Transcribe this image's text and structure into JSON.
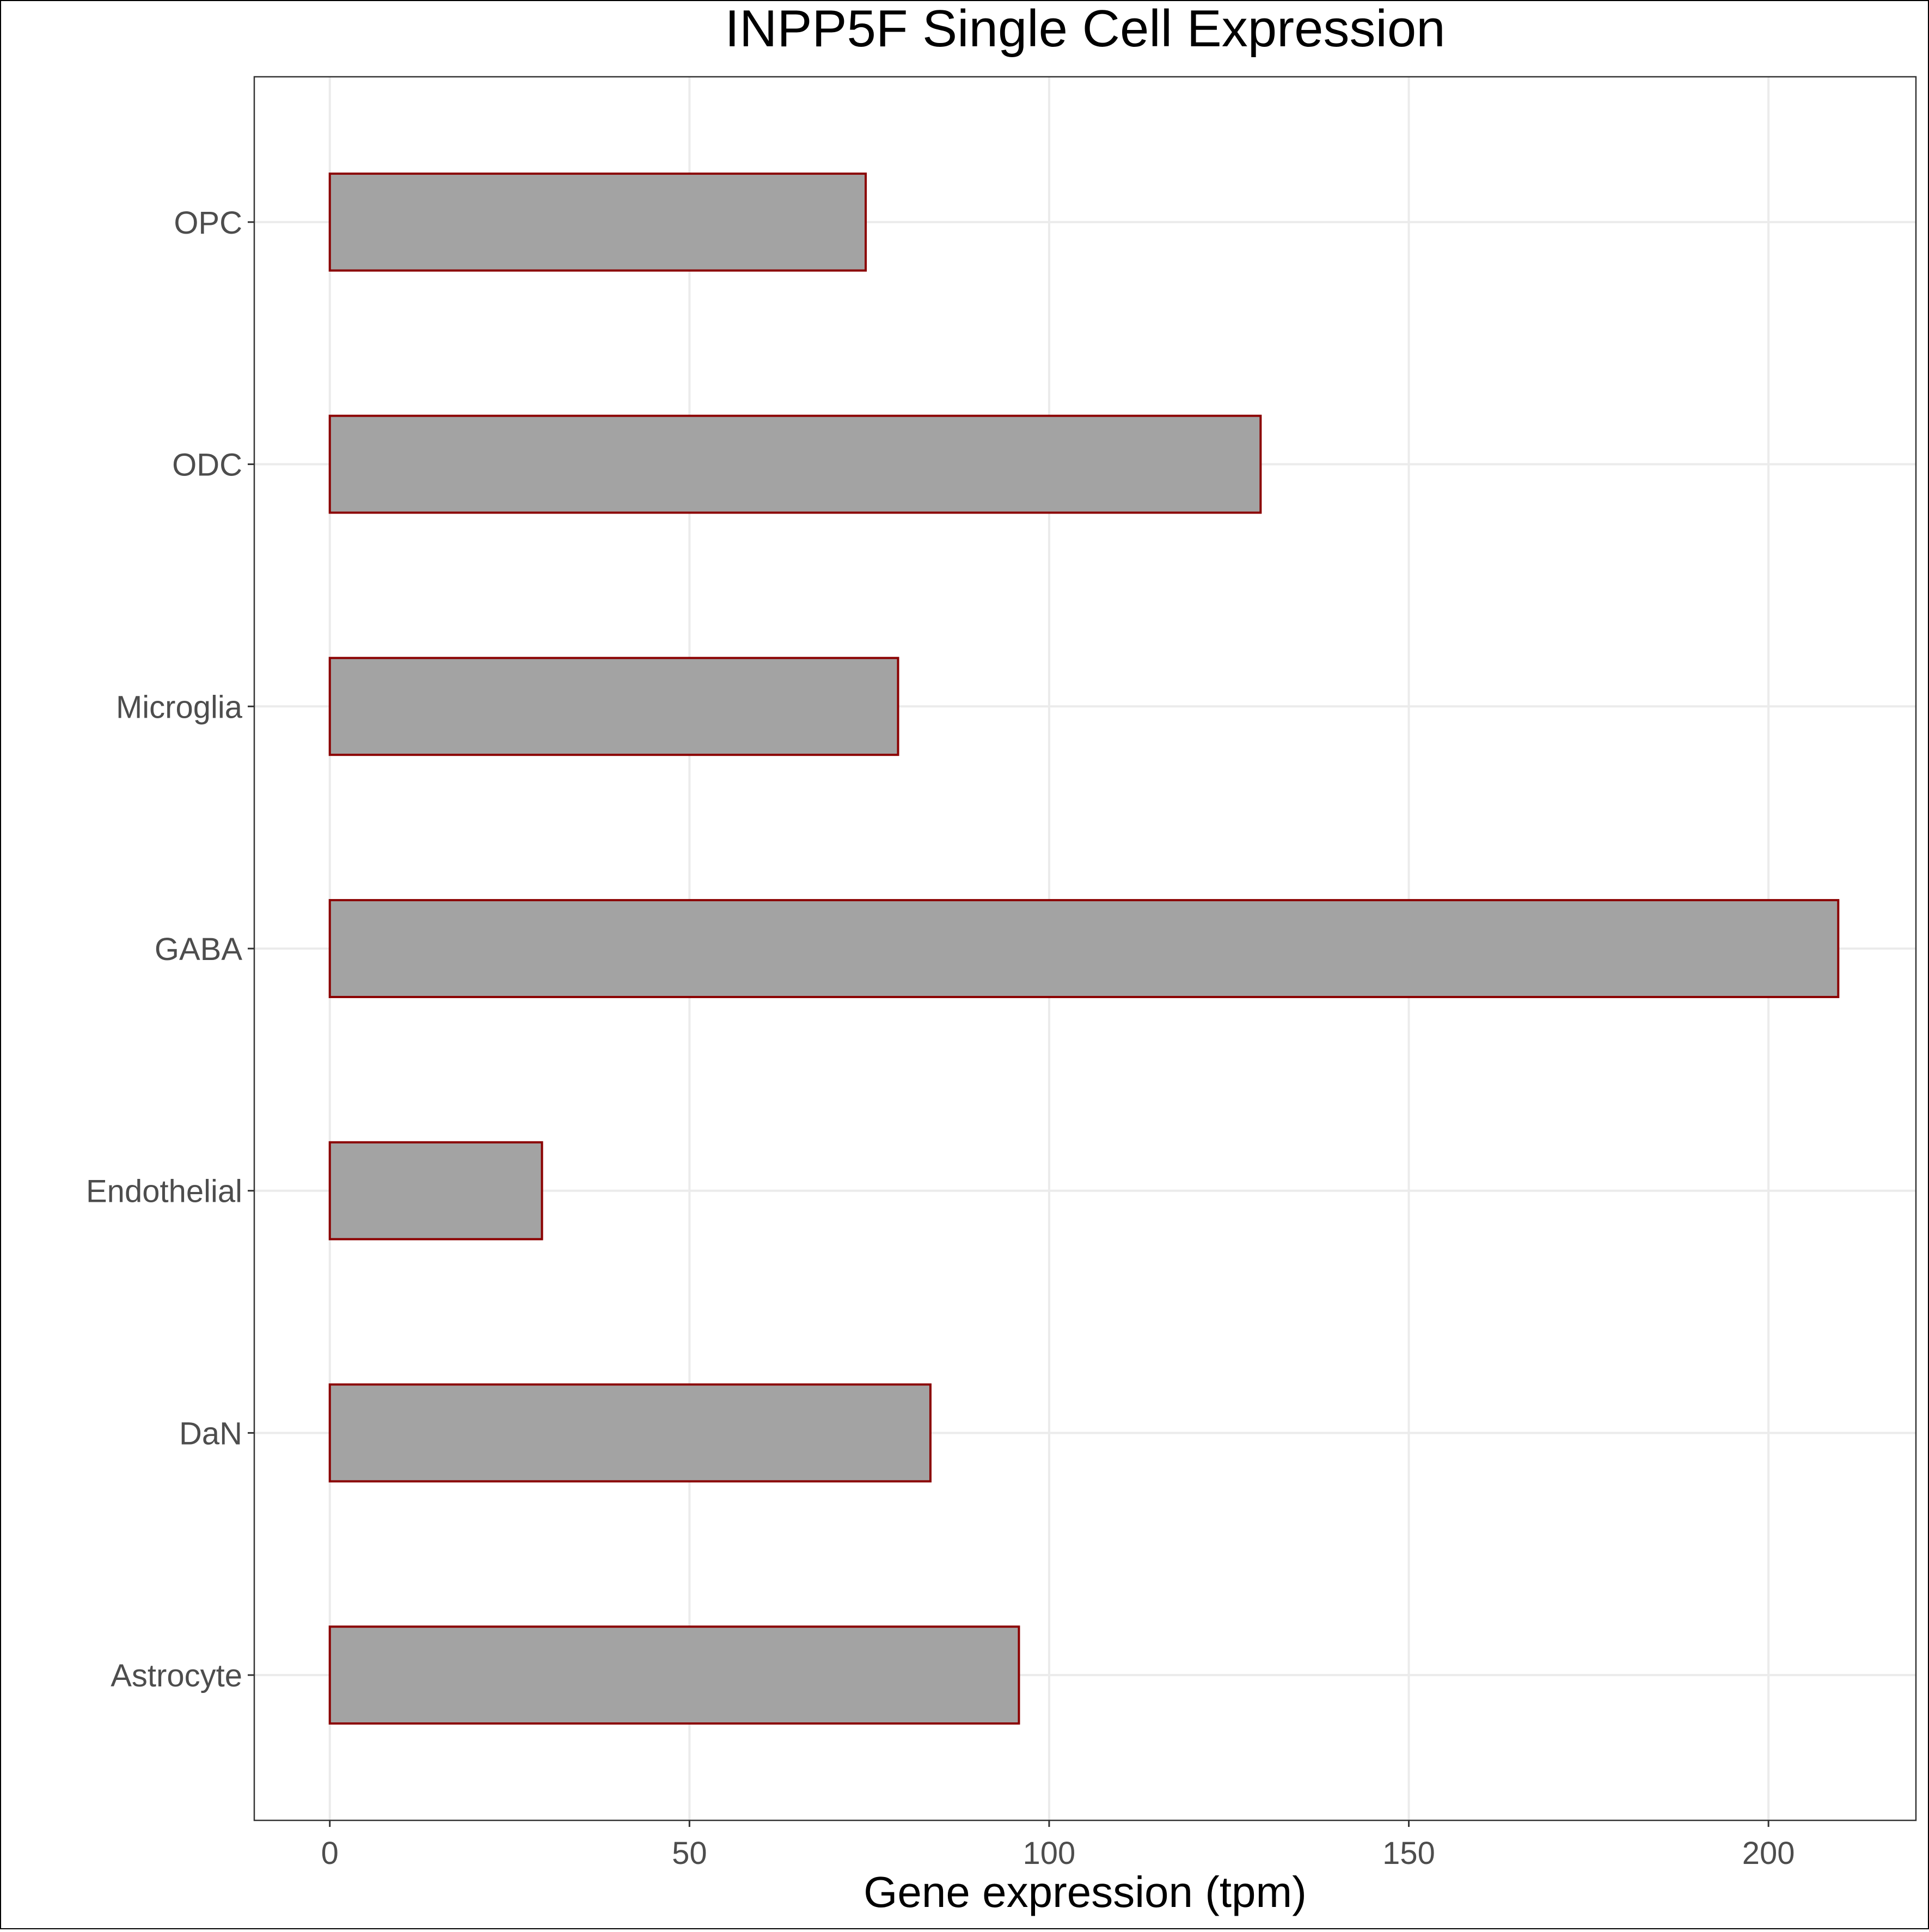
{
  "chart_data": {
    "type": "bar",
    "orientation": "horizontal",
    "title": "INPP5F Single Cell Expression",
    "xlabel": "Gene expression (tpm)",
    "ylabel": "",
    "categories": [
      "Astrocyte",
      "DaN",
      "Endothelial",
      "GABA",
      "Microglia",
      "ODC",
      "OPC"
    ],
    "values": [
      95.8,
      83.5,
      29.5,
      209.7,
      79.0,
      129.4,
      74.5
    ],
    "xlim": [
      -10.5,
      220.5
    ],
    "xticks": [
      0,
      50,
      100,
      150,
      200
    ],
    "grid": true,
    "legend": "none",
    "colors": {
      "bar_fill": "#a3a3a3",
      "bar_stroke": "#8b0000",
      "grid": "#ebebeb",
      "tick_label": "#4d4d4d",
      "title": "#000000",
      "panel_border": "#333333"
    }
  }
}
